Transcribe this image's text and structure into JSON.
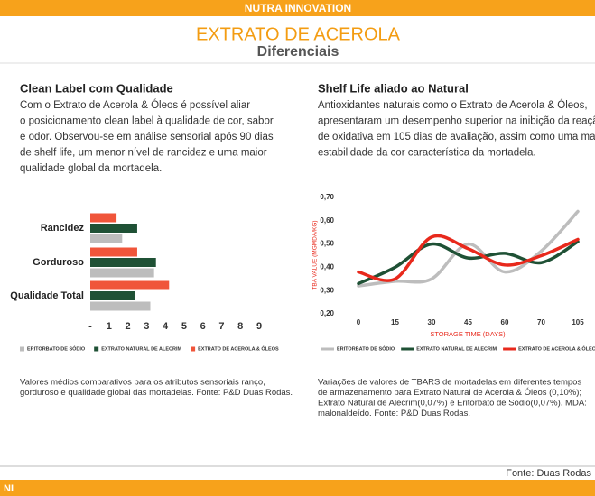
{
  "header": {
    "banner": "NUTRA INNOVATION",
    "title": "EXTRATO DE ACEROLA",
    "subtitle": "Diferenciais"
  },
  "left": {
    "heading": "Clean Label com Qualidade",
    "body": [
      "Com o Extrato de Acerola & Óleos é possível aliar",
      "o posicionamento clean label à qualidade de cor, sabor",
      "e odor. Observou-se em análise sensorial após 90 dias",
      "de shelf life, um menor nível de rancidez e uma maior",
      "qualidade global da mortadela."
    ],
    "caption": [
      "Valores médios comparativos para os atributos sensoriais ranço,",
      "gorduroso e qualidade global das mortadelas. Fonte: P&D Duas Rodas."
    ]
  },
  "right": {
    "heading": "Shelf Life aliado ao Natural",
    "body": [
      "Antioxidantes naturais como o Extrato de Acerola & Óleos,",
      "apresentaram um desempenho superior na inibição da reação",
      "de oxidativa em 105 dias de avaliação, assim como uma maior",
      "estabilidade da cor característica da mortadela."
    ],
    "caption": [
      "Variações de valores de TBARS de mortadelas em diferentes tempos",
      "de armazenamento para Extrato Natural de Acerola & Óleos (0,10%);",
      "Extrato Natural de Alecrim(0,07%) e Eritorbato de Sódio(0,07%).  MDA:",
      "malonaldeído. Fonte: P&D Duas Rodas."
    ]
  },
  "chart_data": [
    {
      "type": "hbar",
      "categories": [
        "Rancidez",
        "Gorduroso",
        "Qualidade Total"
      ],
      "series": [
        {
          "name": "EXTRATO DE ACEROLA & ÓLEOS",
          "color": "#f0553a",
          "values": [
            1.4,
            2.5,
            4.2
          ]
        },
        {
          "name": "EXTRATO NATURAL DE ALECRIM",
          "color": "#1f5135",
          "values": [
            2.5,
            3.5,
            2.4
          ]
        },
        {
          "name": "ERITORBATO DE SÓDIO",
          "color": "#bdbdbd",
          "values": [
            1.7,
            3.4,
            3.2
          ]
        }
      ],
      "xlim": [
        0,
        9
      ],
      "xticks": [
        {
          "value": 0,
          "label": "-"
        },
        1,
        2,
        3,
        4,
        5,
        6,
        7,
        8,
        9
      ]
    },
    {
      "type": "line",
      "x_label": "STORAGE TIME (DAYS)",
      "y_label": "TBA VALUE (MGMDA/KG)",
      "categories": [
        "0",
        "15",
        "30",
        "45",
        "60",
        "70",
        "105"
      ],
      "series": [
        {
          "name": "ERITORBATO DE SÓDIO",
          "color": "#bdbdbd",
          "values": [
            0.32,
            0.34,
            0.35,
            0.5,
            0.38,
            0.47,
            0.64
          ]
        },
        {
          "name": "EXTRATO NATURAL DE ALECRIM",
          "color": "#1f5135",
          "values": [
            0.33,
            0.4,
            0.5,
            0.44,
            0.46,
            0.42,
            0.51
          ]
        },
        {
          "name": "EXTRATO DE ACEROLA & ÓLEOS",
          "color": "#e8291c",
          "values": [
            0.38,
            0.35,
            0.53,
            0.48,
            0.41,
            0.45,
            0.52
          ]
        }
      ],
      "ylim": [
        0.2,
        0.7
      ],
      "yticks": [
        {
          "value": 0.2,
          "label": "0,20"
        },
        {
          "value": 0.3,
          "label": "0,30"
        },
        {
          "value": 0.4,
          "label": "0,40"
        },
        {
          "value": 0.5,
          "label": "0,50"
        },
        {
          "value": 0.6,
          "label": "0,60"
        },
        {
          "value": 0.7,
          "label": "0,70"
        }
      ]
    }
  ],
  "footer": {
    "source": "Fonte: Duas Rodas",
    "logo": "NI"
  }
}
